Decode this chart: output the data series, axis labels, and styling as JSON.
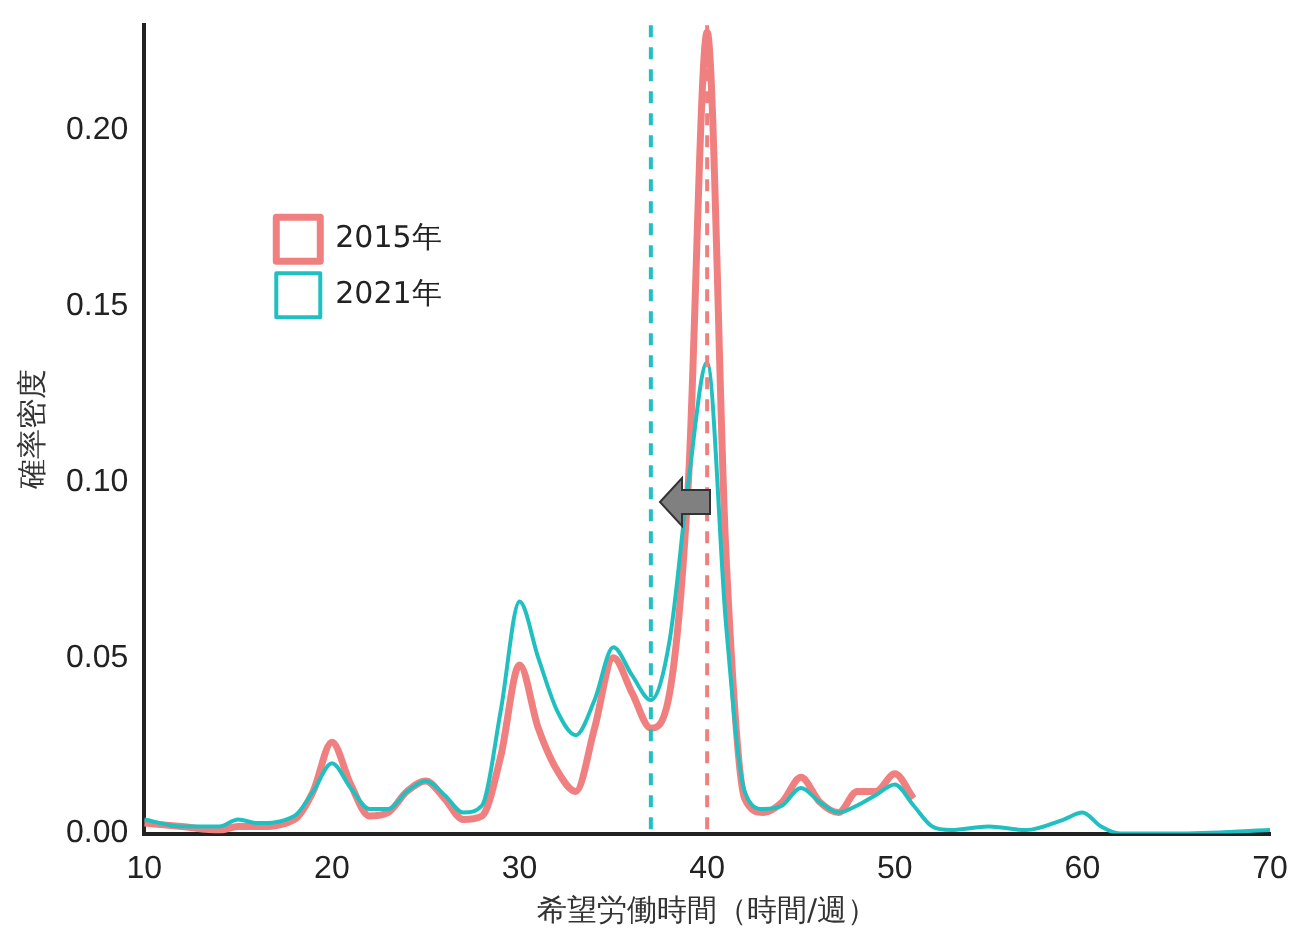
{
  "chart_data": {
    "type": "line",
    "xlabel": "希望労働時間（時間/週）",
    "ylabel": "確率密度",
    "xlim": [
      10,
      70
    ],
    "xticks": [
      10,
      20,
      30,
      40,
      50,
      60,
      70
    ],
    "ylim": [
      0,
      0.23
    ],
    "yticks": [
      {
        "value": 0,
        "label": "0.00"
      },
      {
        "value": 0.05,
        "label": "0.05"
      },
      {
        "value": 0.1,
        "label": "0.10"
      },
      {
        "value": 0.15,
        "label": "0.15"
      },
      {
        "value": 0.2,
        "label": "0.20"
      }
    ],
    "x": [
      10,
      12,
      14,
      15,
      16,
      18,
      19,
      20,
      21,
      22,
      23,
      24,
      25,
      26,
      27,
      28,
      29,
      30,
      31,
      32,
      33,
      34,
      35,
      36,
      37,
      38,
      39,
      40,
      41,
      42,
      43,
      44,
      45,
      46,
      47,
      48,
      49,
      50,
      51,
      52,
      53,
      55,
      57,
      59,
      60,
      61,
      62,
      65,
      70
    ],
    "series": [
      {
        "name": "2015年",
        "color": "#f08080",
        "values": [
          0.003,
          0.002,
          0.001,
          0.002,
          0.002,
          0.004,
          0.012,
          0.026,
          0.014,
          0.005,
          0.006,
          0.012,
          0.015,
          0.01,
          0.004,
          0.005,
          0.022,
          0.048,
          0.03,
          0.018,
          0.012,
          0.03,
          0.05,
          0.04,
          0.03,
          0.04,
          0.1,
          0.228,
          0.08,
          0.01,
          0.006,
          0.009,
          0.016,
          0.009,
          0.006,
          0.012,
          0.012,
          0.017,
          0.01,
          null,
          null,
          null,
          null,
          null,
          null,
          null,
          null,
          null,
          null
        ]
      },
      {
        "name": "2021年",
        "color": "#20c0c0",
        "values": [
          0.004,
          0.002,
          0.002,
          0.004,
          0.003,
          0.005,
          0.012,
          0.02,
          0.013,
          0.007,
          0.007,
          0.012,
          0.015,
          0.011,
          0.006,
          0.008,
          0.035,
          0.066,
          0.05,
          0.035,
          0.028,
          0.038,
          0.053,
          0.045,
          0.038,
          0.055,
          0.1,
          0.134,
          0.06,
          0.012,
          0.007,
          0.008,
          0.013,
          0.009,
          0.006,
          0.008,
          0.011,
          0.014,
          0.008,
          0.002,
          0.001,
          0.002,
          0.001,
          0.004,
          0.006,
          0.002,
          0,
          0,
          0.001
        ]
      }
    ],
    "ref_lines": [
      {
        "axis": "x",
        "value": 37,
        "color": "#20c0c0",
        "line_style": "dashed"
      },
      {
        "axis": "x",
        "value": 40,
        "color": "#f08080",
        "line_style": "dashed"
      }
    ],
    "legend": "top left",
    "grid": false,
    "marker": "none",
    "line_style": "solid"
  }
}
